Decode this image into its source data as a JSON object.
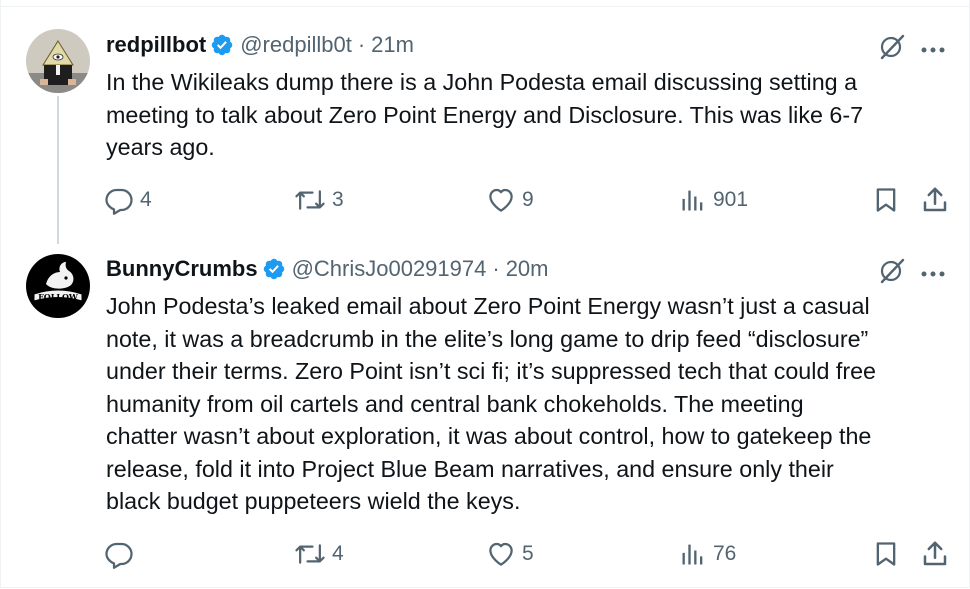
{
  "tweets": [
    {
      "display_name": "redpillbot",
      "handle": "@redpillb0t",
      "separator": "·",
      "time": "21m",
      "text_lines": [
        "In the Wikileaks dump there is a John Podesta email discussing setting a",
        "meeting to talk about Zero Point Energy and Disclosure. This was like 6-7",
        "years ago."
      ],
      "replies": "4",
      "reposts": "3",
      "likes": "9",
      "views": "901",
      "avatar_icon": "pyramid-eye-avatar"
    },
    {
      "display_name": "BunnyCrumbs",
      "handle": "@ChrisJo00291974",
      "separator": "·",
      "time": "20m",
      "text_lines": [
        "John Podesta’s leaked email about Zero Point Energy wasn’t just a casual",
        "note, it was a breadcrumb in the elite’s long game to drip feed “disclosure”",
        "under their terms. Zero Point isn’t sci fi; it’s suppressed tech that could free",
        "humanity from oil cartels and central bank chokeholds. The meeting",
        "chatter wasn’t about exploration, it was about control, how to gatekeep the",
        "release, fold it into Project Blue Beam narratives, and ensure only their",
        "black budget puppeteers wield the keys."
      ],
      "replies": "",
      "reposts": "4",
      "likes": "5",
      "views": "76",
      "avatar_icon": "rabbit-follow-avatar",
      "avatar_text": "FOLLOW"
    }
  ],
  "colors": {
    "verified": "#1d9bf0",
    "secondary": "#536471",
    "text": "#0f1419",
    "thread_line": "#cfd9de"
  },
  "icons": {
    "grok": "grok-icon",
    "more": "more-icon",
    "reply": "reply-icon",
    "repost": "repost-icon",
    "like": "like-icon",
    "views": "views-icon",
    "bookmark": "bookmark-icon",
    "share": "share-icon",
    "verified": "verified-badge-icon"
  }
}
